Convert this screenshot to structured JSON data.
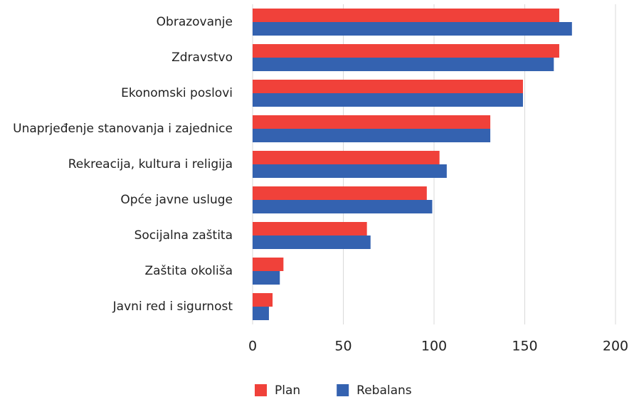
{
  "chart_data": {
    "type": "bar",
    "orientation": "horizontal",
    "categories": [
      "Obrazovanje",
      "Zdravstvo",
      "Ekonomski poslovi",
      "Unaprjeđenje stanovanja i zajednice",
      "Rekreacija, kultura i religija",
      "Opće javne usluge",
      "Socijalna zaštita",
      "Zaštita okoliša",
      "Javni red i sigurnost"
    ],
    "series": [
      {
        "name": "Plan",
        "color": "#f0413a",
        "values": [
          169,
          169,
          149,
          131,
          103,
          96,
          63,
          17,
          11
        ]
      },
      {
        "name": "Rebalans",
        "color": "#3462b0",
        "values": [
          176,
          166,
          149,
          131,
          107,
          99,
          65,
          15,
          9
        ]
      }
    ],
    "xlim": [
      0,
      200
    ],
    "xticks": [
      0,
      50,
      100,
      150,
      200
    ],
    "grid": true,
    "legend": "bottom"
  }
}
